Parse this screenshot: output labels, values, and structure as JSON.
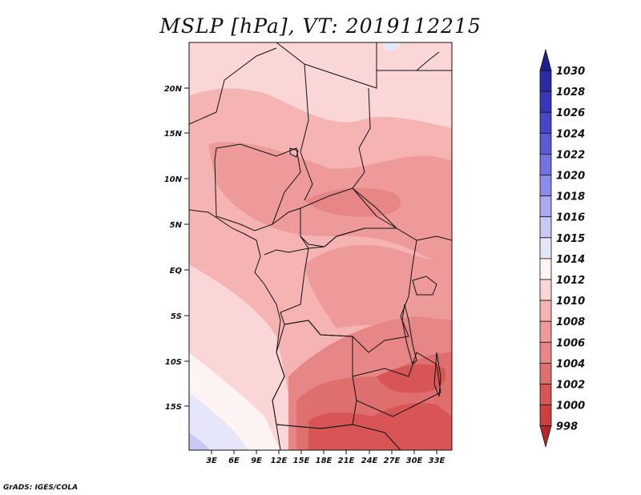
{
  "title": "MSLP [hPa], VT: 2019112215",
  "credit": "GrADS: IGES/COLA",
  "lat_labels": [
    "20N",
    "15N",
    "10N",
    "5N",
    "EQ",
    "5S",
    "10S",
    "15S"
  ],
  "lon_labels": [
    "3E",
    "6E",
    "9E",
    "12E",
    "15E",
    "18E",
    "21E",
    "24E",
    "27E",
    "30E",
    "33E"
  ],
  "colorbar": {
    "labels": [
      "1030",
      "1028",
      "1026",
      "1024",
      "1022",
      "1020",
      "1018",
      "1016",
      "1015",
      "1014",
      "1012",
      "1010",
      "1008",
      "1006",
      "1004",
      "1002",
      "1000",
      "998"
    ],
    "colors": [
      "#1e1e8c",
      "#2a2aa6",
      "#3737b9",
      "#4646c9",
      "#5a5ad6",
      "#7272e0",
      "#8c8cea",
      "#aaaaf0",
      "#c8c8f5",
      "#e6e6fa",
      "#fdf3f3",
      "#fbd6d6",
      "#f5b3b3",
      "#ee9a9a",
      "#e78686",
      "#df6e6e",
      "#d75555",
      "#cd4040",
      "#b42828"
    ]
  },
  "colors": {
    "c1013": "#fbd6d6",
    "c1011": "#f5b3b3",
    "c1009": "#ee9a9a",
    "c1007": "#e78686",
    "c1005": "#df6e6e",
    "c1003": "#d75555",
    "c1015": "#fdf3f3",
    "c1016": "#e6e6fa",
    "c1017": "#c8c8f5"
  }
}
